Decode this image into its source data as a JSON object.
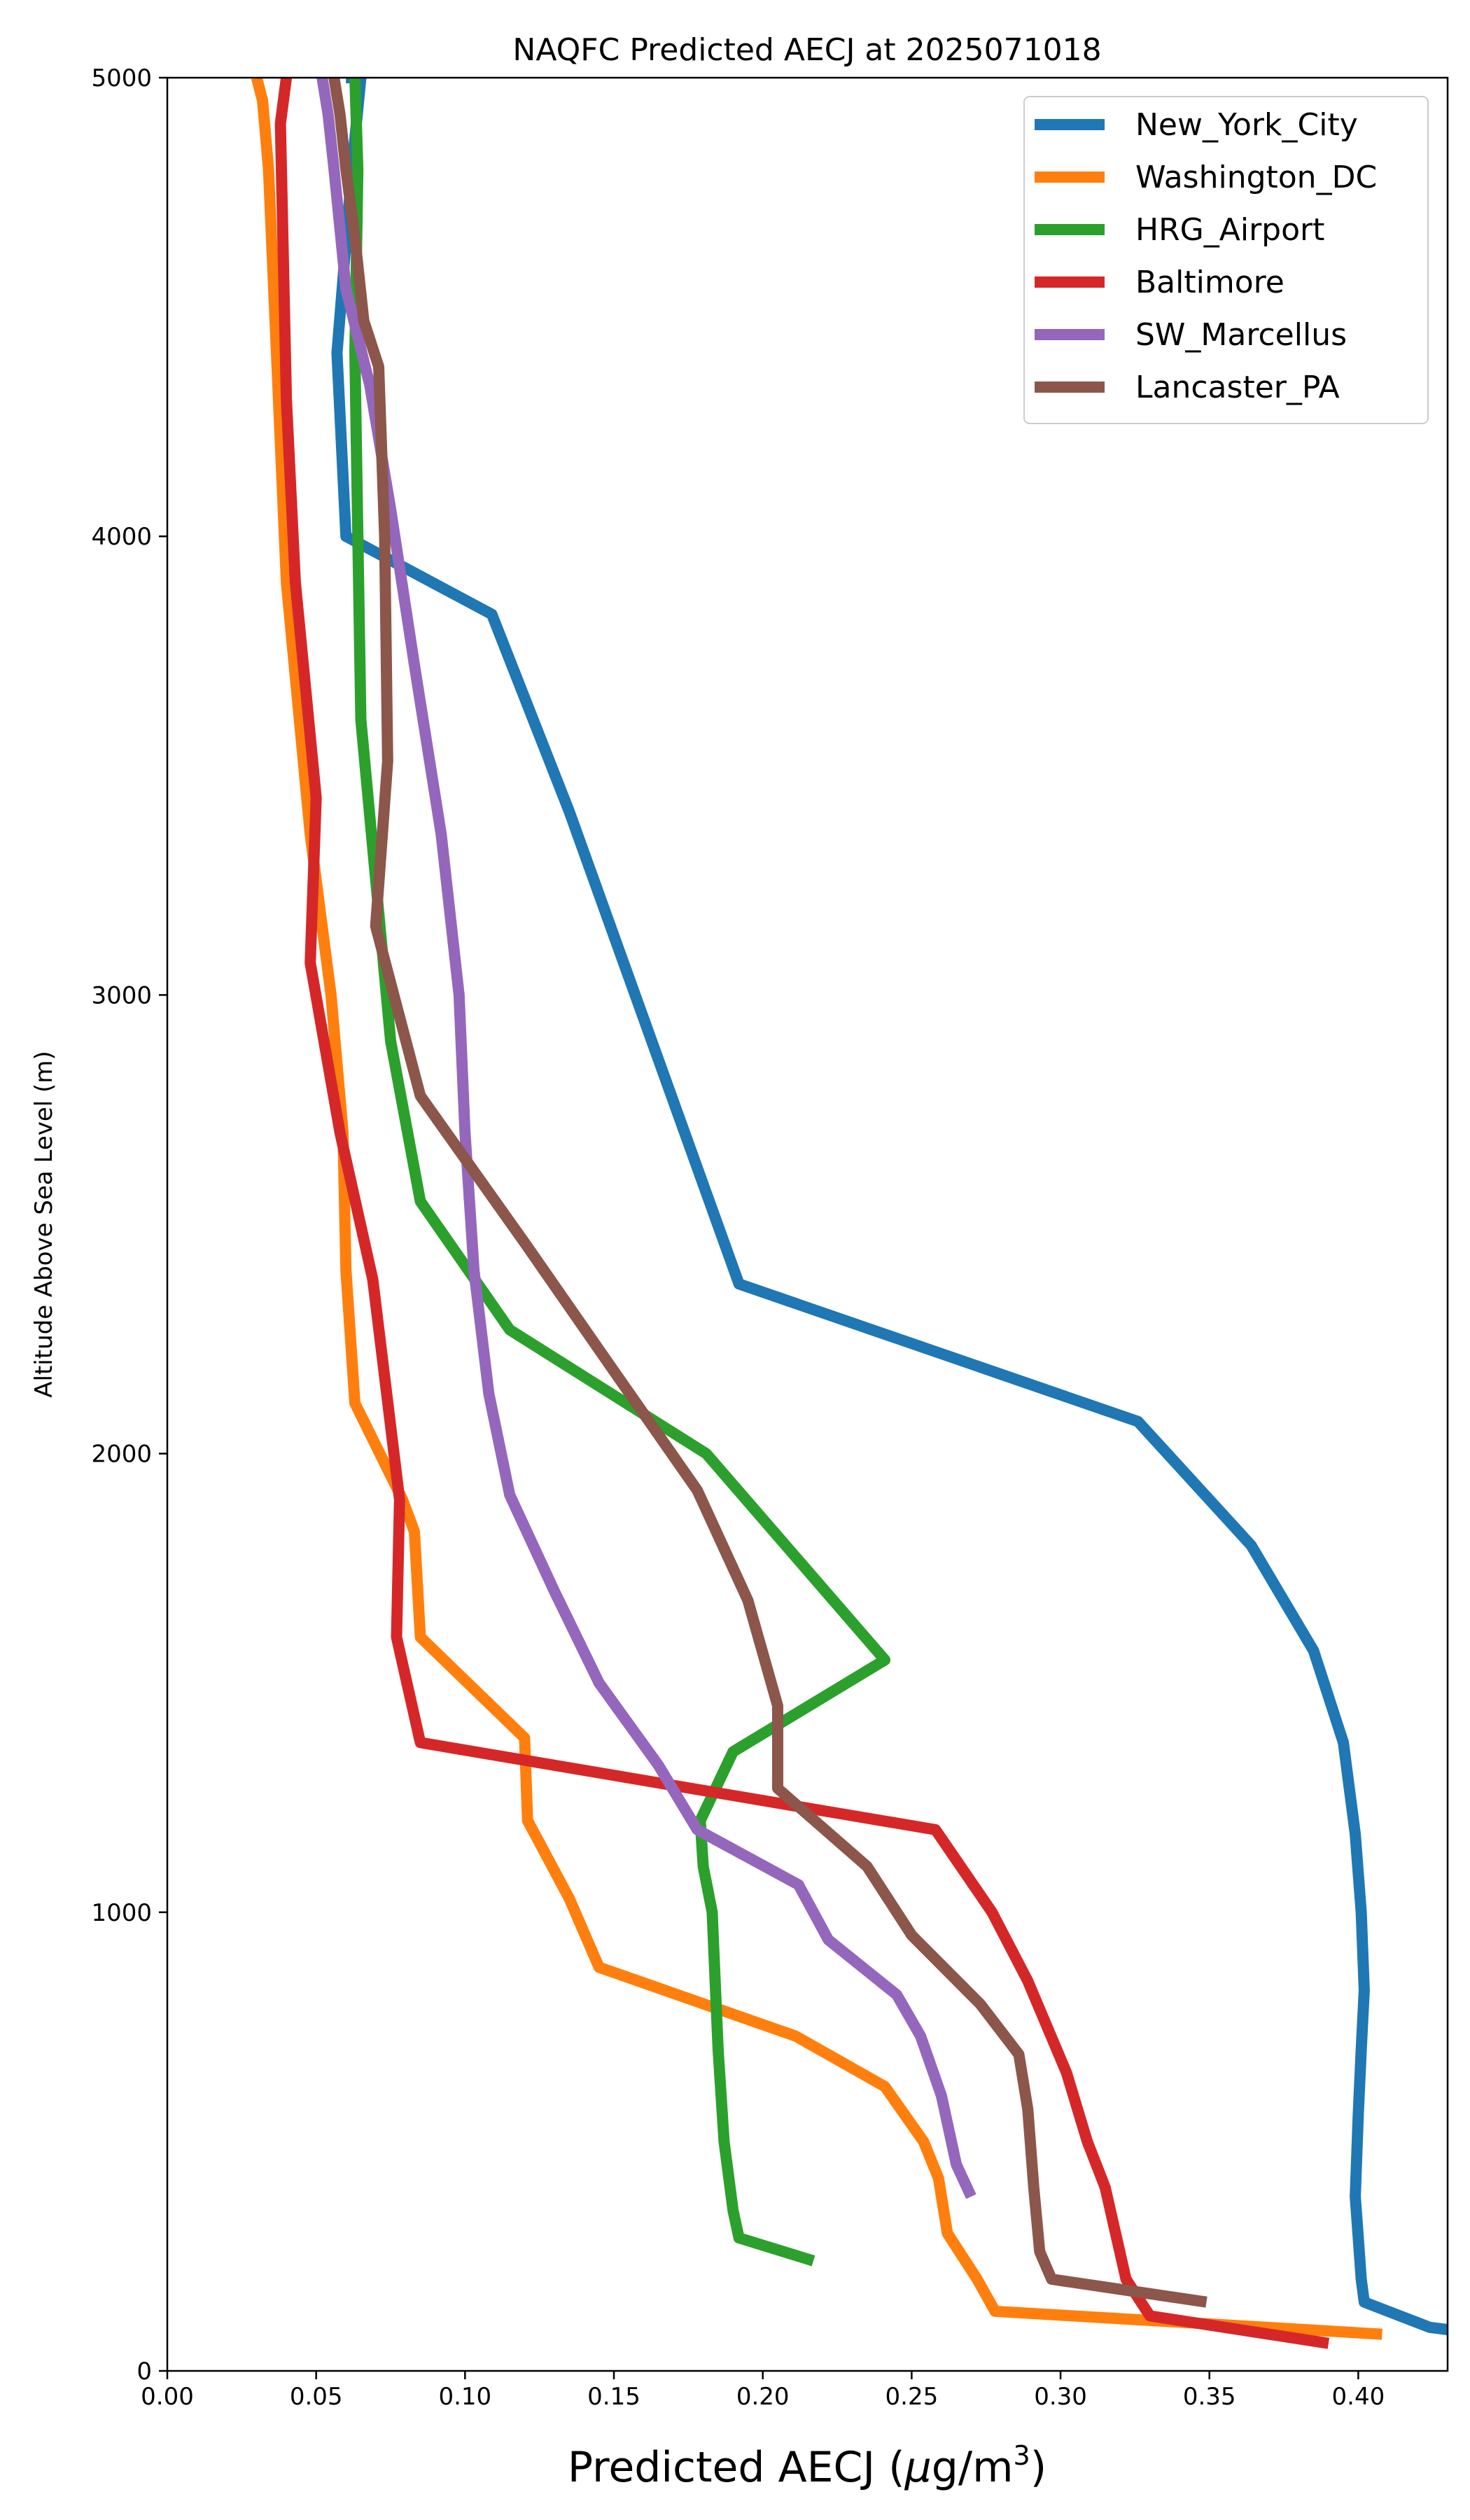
{
  "chart_data": {
    "type": "line",
    "title": "NAQFC Predicted AECJ at 2025071018",
    "xlabel_main": "Predicted AECJ (",
    "xlabel_mu": "μ",
    "xlabel_unit": "g/m",
    "xlabel_sup": "3",
    "xlabel_close": ")",
    "ylabel": "Altitude Above Sea Level (m)",
    "xlim": [
      0.0,
      0.43
    ],
    "ylim": [
      0,
      5000
    ],
    "xticks": [
      "0.00",
      "0.05",
      "0.10",
      "0.15",
      "0.20",
      "0.25",
      "0.30",
      "0.35",
      "0.40"
    ],
    "yticks": [
      "0",
      "1000",
      "2000",
      "3000",
      "4000",
      "5000"
    ],
    "grid": false,
    "legend_position": "top-right",
    "series": [
      {
        "name": "New_York_City",
        "color": "#1f77b4",
        "x": [
          0.43,
          0.424,
          0.402,
          0.401,
          0.4,
          0.399,
          0.4,
          0.401,
          0.402,
          0.401,
          0.399,
          0.395,
          0.385,
          0.364,
          0.326,
          0.192,
          0.135,
          0.109,
          0.06,
          0.057,
          0.062,
          0.065,
          0.062,
          0.06
        ],
        "y": [
          90,
          95,
          150,
          200,
          290,
          380,
          560,
          700,
          830,
          1000,
          1170,
          1370,
          1570,
          1800,
          2070,
          2370,
          3400,
          3830,
          4000,
          4400,
          4800,
          5000,
          5000,
          5000
        ]
      },
      {
        "name": "Washington_DC",
        "color": "#ff7f0e",
        "x": [
          0.408,
          0.278,
          0.272,
          0.262,
          0.259,
          0.254,
          0.241,
          0.211,
          0.145,
          0.135,
          0.121,
          0.12,
          0.085,
          0.083,
          0.079,
          0.063,
          0.06,
          0.059,
          0.055,
          0.048,
          0.04,
          0.037,
          0.034,
          0.032,
          0.03
        ],
        "y": [
          80,
          130,
          200,
          300,
          420,
          500,
          620,
          730,
          880,
          1030,
          1200,
          1380,
          1600,
          1830,
          1900,
          2110,
          2400,
          2700,
          3000,
          3350,
          3900,
          4350,
          4800,
          4950,
          5000
        ]
      },
      {
        "name": "HRG_Airport",
        "color": "#2ca02c",
        "x": [
          0.217,
          0.192,
          0.19,
          0.187,
          0.185,
          0.183,
          0.18,
          0.179,
          0.19,
          0.241,
          0.181,
          0.115,
          0.085,
          0.075,
          0.065,
          0.064,
          0.063,
          0.064,
          0.063
        ],
        "y": [
          240,
          290,
          350,
          500,
          700,
          1000,
          1100,
          1200,
          1350,
          1550,
          2000,
          2270,
          2550,
          2900,
          3600,
          4000,
          4400,
          4800,
          5000
        ]
      },
      {
        "name": "Baltimore",
        "color": "#d62728",
        "x": [
          0.39,
          0.33,
          0.322,
          0.315,
          0.309,
          0.302,
          0.289,
          0.277,
          0.258,
          0.085,
          0.077,
          0.078,
          0.069,
          0.058,
          0.048,
          0.05,
          0.043,
          0.04,
          0.038,
          0.04
        ],
        "y": [
          60,
          120,
          200,
          400,
          500,
          650,
          850,
          1000,
          1180,
          1370,
          1600,
          1900,
          2380,
          2700,
          3070,
          3430,
          3900,
          4300,
          4900,
          5000
        ]
      },
      {
        "name": "SW_Marcellus",
        "color": "#9467bd",
        "x": [
          0.27,
          0.265,
          0.26,
          0.253,
          0.245,
          0.222,
          0.212,
          0.178,
          0.165,
          0.145,
          0.13,
          0.115,
          0.108,
          0.103,
          0.1,
          0.098,
          0.092,
          0.083,
          0.075,
          0.068,
          0.06,
          0.056,
          0.054,
          0.052
        ],
        "y": [
          380,
          450,
          600,
          730,
          820,
          940,
          1060,
          1180,
          1320,
          1500,
          1700,
          1910,
          2130,
          2400,
          2700,
          3000,
          3350,
          3720,
          4060,
          4330,
          4540,
          4800,
          4920,
          5000
        ]
      },
      {
        "name": "Lancaster_PA",
        "color": "#8c564b",
        "x": [
          0.349,
          0.297,
          0.293,
          0.291,
          0.289,
          0.286,
          0.273,
          0.25,
          0.235,
          0.205,
          0.205,
          0.195,
          0.178,
          0.15,
          0.12,
          0.085,
          0.07,
          0.074,
          0.073,
          0.071,
          0.066,
          0.063,
          0.06,
          0.058,
          0.056
        ],
        "y": [
          150,
          200,
          260,
          400,
          570,
          690,
          800,
          950,
          1100,
          1270,
          1450,
          1680,
          1920,
          2180,
          2460,
          2780,
          3150,
          3510,
          4000,
          4370,
          4470,
          4650,
          4800,
          4920,
          5000
        ]
      }
    ]
  }
}
